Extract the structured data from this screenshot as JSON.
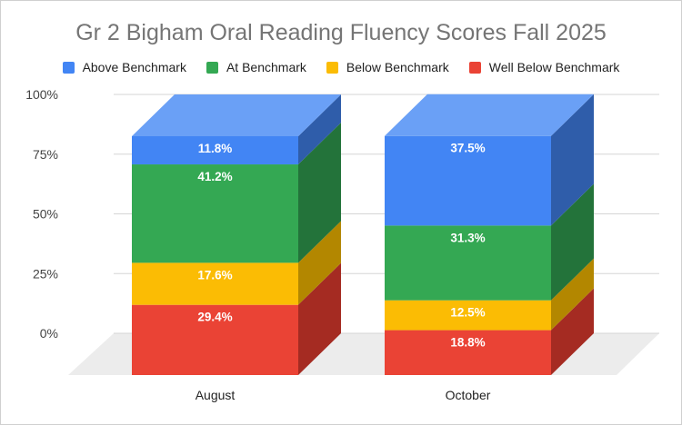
{
  "chart_data": {
    "type": "bar",
    "stacked": true,
    "three_d": true,
    "title": "Gr 2 Bigham Oral Reading Fluency Scores Fall 2025",
    "categories": [
      "August",
      "October"
    ],
    "y_ticks": [
      "0%",
      "25%",
      "50%",
      "75%",
      "100%"
    ],
    "ylim": [
      0,
      100
    ],
    "legend_position": "top",
    "grid": true,
    "series": [
      {
        "name": "Well Below Benchmark",
        "color": "#EA4335",
        "side": "#A52B22",
        "values": [
          29.4,
          18.8
        ],
        "labels": [
          "29.4%",
          "18.8%"
        ]
      },
      {
        "name": "Below Benchmark",
        "color": "#FBBC04",
        "side": "#B38700",
        "values": [
          17.6,
          12.5
        ],
        "labels": [
          "17.6%",
          "12.5%"
        ]
      },
      {
        "name": "At Benchmark",
        "color": "#34A853",
        "side": "#23733A",
        "values": [
          41.2,
          31.3
        ],
        "labels": [
          "41.2%",
          "31.3%"
        ]
      },
      {
        "name": "Above Benchmark",
        "color": "#4285F4",
        "side": "#2F5DAA",
        "top": "#6AA0F6",
        "values": [
          11.8,
          37.5
        ],
        "labels": [
          "11.8%",
          "37.5%"
        ]
      }
    ],
    "legend_order": [
      "Above Benchmark",
      "At Benchmark",
      "Below Benchmark",
      "Well Below Benchmark"
    ]
  }
}
